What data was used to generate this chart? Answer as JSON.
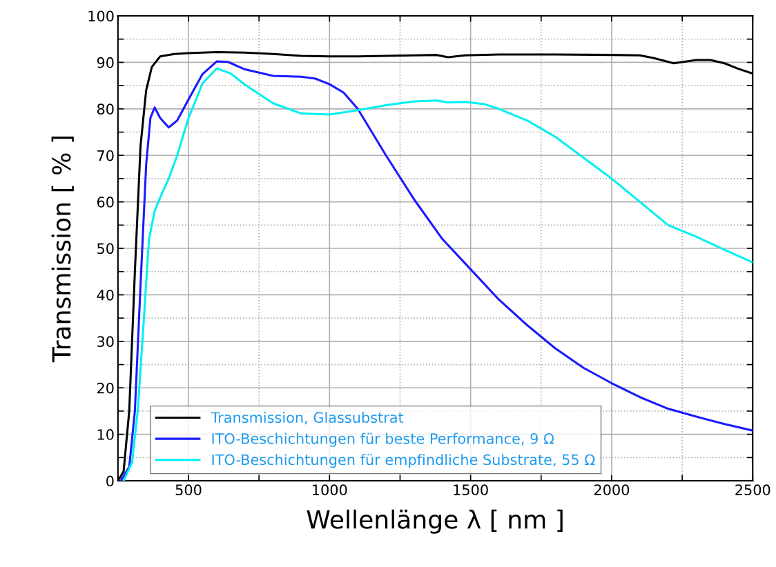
{
  "chart_data": {
    "type": "line",
    "xlabel": "Wellenlänge λ [ nm ]",
    "ylabel": "Transmission [ % ]",
    "xlim": [
      250,
      2500
    ],
    "ylim": [
      0,
      100
    ],
    "xticks": [
      {
        "value": 250,
        "label": null
      },
      500,
      {
        "value": 750,
        "label": null
      },
      1000,
      {
        "value": 1250,
        "label": null
      },
      1500,
      {
        "value": 1750,
        "label": null
      },
      2000,
      {
        "value": 2250,
        "label": null
      },
      2500
    ],
    "yticks": [
      0,
      {
        "value": 5,
        "label": null
      },
      10,
      {
        "value": 15,
        "label": null
      },
      20,
      {
        "value": 25,
        "label": null
      },
      30,
      {
        "value": 35,
        "label": null
      },
      40,
      {
        "value": 45,
        "label": null
      },
      50,
      {
        "value": 55,
        "label": null
      },
      60,
      {
        "value": 65,
        "label": null
      },
      70,
      {
        "value": 75,
        "label": null
      },
      80,
      {
        "value": 85,
        "label": null
      },
      90,
      {
        "value": 95,
        "label": null
      },
      100
    ],
    "grid": true,
    "legend": "bottom left",
    "line_style": "solid",
    "marker": "none",
    "series": [
      {
        "name": "Transmission, Glassubstrat",
        "color": "#000000",
        "x": [
          250,
          270,
          290,
          310,
          330,
          350,
          370,
          400,
          450,
          500,
          600,
          700,
          800,
          900,
          1000,
          1100,
          1200,
          1300,
          1380,
          1420,
          1480,
          1600,
          1800,
          2000,
          2100,
          2150,
          2220,
          2300,
          2350,
          2400,
          2450,
          2500
        ],
        "values": [
          0,
          2,
          15,
          45,
          72,
          84,
          89,
          91.3,
          91.8,
          92,
          92.2,
          92.1,
          91.8,
          91.4,
          91.3,
          91.3,
          91.4,
          91.5,
          91.6,
          91.1,
          91.5,
          91.7,
          91.7,
          91.6,
          91.5,
          90.9,
          89.8,
          90.5,
          90.5,
          89.8,
          88.6,
          87.6
        ]
      },
      {
        "name": "ITO-Beschichtungen für beste Performance, 9 Ω",
        "color": "#1a1aff",
        "x": [
          260,
          290,
          310,
          330,
          350,
          365,
          380,
          400,
          430,
          460,
          500,
          550,
          600,
          640,
          700,
          800,
          900,
          950,
          1000,
          1050,
          1100,
          1150,
          1200,
          1300,
          1400,
          1500,
          1600,
          1700,
          1800,
          1900,
          2000,
          2100,
          2200,
          2300,
          2400,
          2500
        ],
        "values": [
          0,
          3,
          15,
          42,
          68,
          78,
          80.3,
          78,
          76,
          77.5,
          82,
          87.5,
          90.2,
          90.1,
          88.5,
          87.1,
          86.9,
          86.5,
          85.3,
          83.5,
          80,
          75,
          70,
          60.5,
          52,
          45.5,
          39,
          33.5,
          28.5,
          24.3,
          21,
          18,
          15.5,
          13.8,
          12.2,
          10.8
        ]
      },
      {
        "name": "ITO-Beschichtungen für empfindliche Substrate, 55 Ω",
        "color": "#00f0f0",
        "x": [
          270,
          300,
          320,
          340,
          360,
          380,
          400,
          430,
          460,
          500,
          550,
          600,
          650,
          700,
          800,
          900,
          1000,
          1100,
          1200,
          1300,
          1380,
          1420,
          1480,
          1550,
          1600,
          1700,
          1800,
          1900,
          2000,
          2100,
          2200,
          2300,
          2400,
          2500
        ],
        "values": [
          0,
          4,
          15,
          33,
          52,
          58,
          61,
          65,
          70,
          78,
          85.5,
          88.7,
          87.6,
          85.2,
          81.2,
          79,
          78.8,
          79.7,
          80.8,
          81.6,
          81.8,
          81.4,
          81.5,
          81,
          80,
          77.5,
          74,
          69.5,
          65,
          60,
          55,
          52.5,
          49.7,
          47
        ]
      }
    ]
  }
}
